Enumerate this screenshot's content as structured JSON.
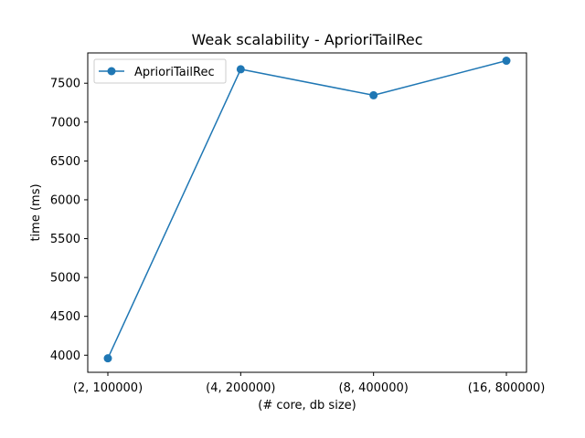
{
  "chart_data": {
    "type": "line",
    "title": "Weak scalability - AprioriTailRec",
    "xlabel": "(# core, db size)",
    "ylabel": "time (ms)",
    "categories": [
      "(2, 100000)",
      "(4, 200000)",
      "(8, 400000)",
      "(16, 800000)"
    ],
    "series": [
      {
        "name": "AprioriTailRec",
        "values": [
          3960,
          7680,
          7345,
          7790
        ],
        "color": "#1f77b4",
        "marker": "circle"
      }
    ],
    "ylim": [
      3780,
      7890
    ],
    "yticks": [
      4000,
      4500,
      5000,
      5500,
      6000,
      6500,
      7000,
      7500
    ],
    "grid": false,
    "legend_position": "top-left"
  }
}
